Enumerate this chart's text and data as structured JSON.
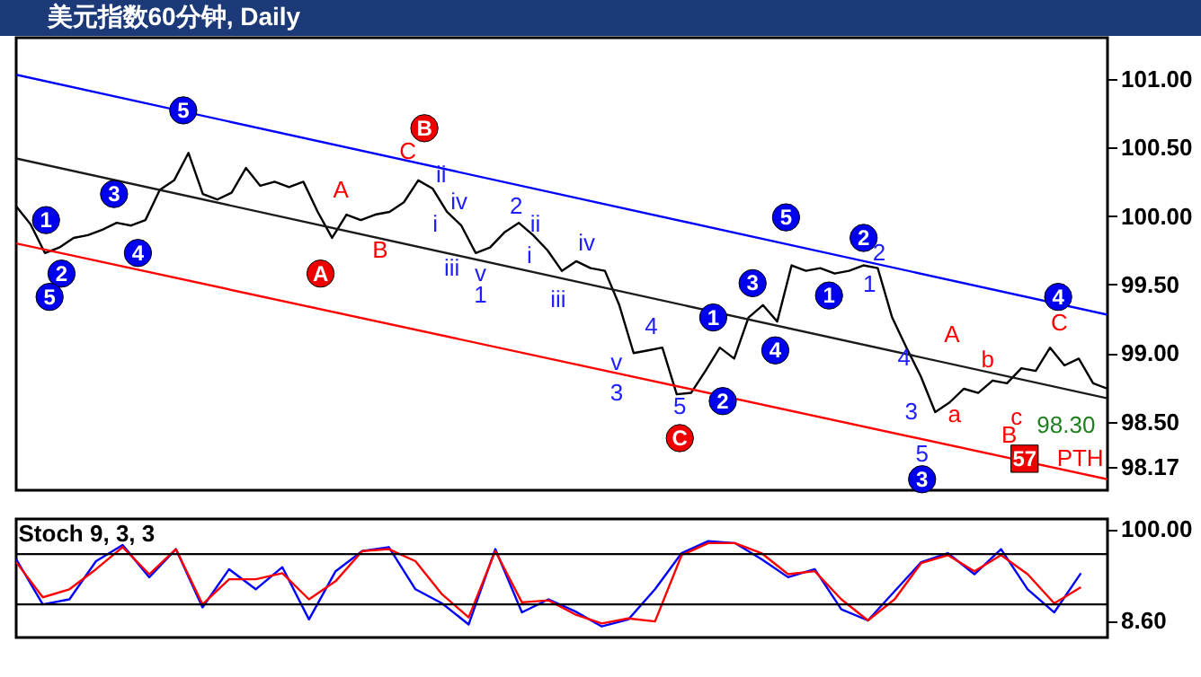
{
  "chart_data": [
    {
      "type": "line",
      "title": "美元指数60分钟, Daily",
      "ylim": [
        98.0,
        101.3
      ],
      "tick_labels": "y",
      "categories": [
        null,
        null,
        null,
        null,
        null,
        null,
        null,
        null,
        null,
        null,
        null,
        null,
        null,
        null,
        null,
        null,
        null,
        null,
        null,
        null,
        null,
        null,
        null,
        null,
        null,
        null,
        null,
        null,
        null,
        null,
        null,
        null,
        null,
        null,
        null,
        null,
        null,
        null,
        null,
        null,
        null,
        null,
        null,
        null,
        null,
        null,
        null,
        null,
        null,
        null,
        null,
        null,
        null,
        null,
        null,
        null,
        null,
        null,
        null,
        null,
        null,
        null,
        null,
        null,
        null,
        null,
        null,
        null,
        null,
        null,
        null,
        null,
        null,
        null,
        null,
        null,
        null
      ],
      "yticks": [
        {
          "value": 98.17,
          "label": "98.17"
        },
        {
          "value": 98.5,
          "label": "98.50"
        },
        {
          "value": 99,
          "label": "99.00"
        },
        {
          "value": 99.5,
          "label": "99.50"
        },
        {
          "value": 100,
          "label": "100.00"
        },
        {
          "value": 100.5,
          "label": "100.50"
        },
        {
          "value": 101,
          "label": "101.00"
        }
      ],
      "annotations": [
        "5",
        "1",
        "3",
        "4",
        "2",
        "5",
        "1",
        "2",
        "3",
        "4",
        "5",
        "2",
        "1",
        "3",
        "4",
        "B",
        "A",
        "C",
        "C",
        "A",
        "B",
        "A",
        "b",
        "a",
        "c",
        "B",
        "C",
        "PTH",
        "ii",
        "iv",
        "i",
        "iii",
        "v",
        "1",
        "2",
        "ii",
        "i",
        "iv",
        "iii",
        "4",
        "v",
        "3",
        "5",
        "2",
        "1",
        "4",
        "3",
        "5",
        "57",
        "98.30"
      ],
      "series": [
        {
          "color": "#000000",
          "values": [
            100.07,
            99.94,
            99.73,
            99.77,
            99.84,
            99.86,
            99.9,
            99.95,
            99.93,
            99.97,
            100.19,
            100.26,
            100.46,
            100.16,
            100.12,
            100.17,
            100.35,
            100.22,
            100.25,
            100.21,
            100.25,
            100.03,
            99.84,
            100.01,
            99.97,
            100.01,
            100.03,
            100.1,
            100.26,
            100.2,
            100.03,
            99.93,
            99.73,
            99.77,
            99.88,
            99.95,
            99.86,
            99.75,
            99.6,
            99.67,
            99.62,
            99.6,
            99.35,
            99.0,
            99.02,
            99.04,
            98.7,
            98.71,
            98.87,
            99.04,
            98.96,
            99.26,
            99.35,
            99.23,
            99.64,
            99.6,
            99.62,
            99.58,
            99.6,
            99.64,
            99.62,
            99.26,
            99.04,
            98.83,
            98.57,
            98.64,
            98.74,
            98.71,
            98.8,
            98.78,
            98.89,
            98.87,
            99.04,
            98.91,
            98.96,
            98.78,
            98.74
          ]
        },
        {
          "color": "#0000ff",
          "values": [
            101.03,
            null,
            null,
            null,
            null,
            null,
            null,
            null,
            null,
            null,
            null,
            null,
            null,
            null,
            null,
            null,
            null,
            null,
            null,
            null,
            null,
            null,
            null,
            null,
            null,
            null,
            null,
            null,
            null,
            null,
            null,
            null,
            null,
            null,
            null,
            null,
            null,
            null,
            null,
            null,
            null,
            null,
            null,
            null,
            null,
            null,
            null,
            null,
            null,
            null,
            null,
            null,
            null,
            null,
            null,
            null,
            null,
            null,
            null,
            null,
            null,
            null,
            null,
            null,
            null,
            null,
            null,
            null,
            null,
            null,
            null,
            null,
            null,
            null,
            null,
            null,
            99.28
          ]
        },
        {
          "color": "#1a1a1a",
          "values": [
            100.42,
            null,
            null,
            null,
            null,
            null,
            null,
            null,
            null,
            null,
            null,
            null,
            null,
            null,
            null,
            null,
            null,
            null,
            null,
            null,
            null,
            null,
            null,
            null,
            null,
            null,
            null,
            null,
            null,
            null,
            null,
            null,
            null,
            null,
            null,
            null,
            null,
            null,
            null,
            null,
            null,
            null,
            null,
            null,
            null,
            null,
            null,
            null,
            null,
            null,
            null,
            null,
            null,
            null,
            null,
            null,
            null,
            null,
            null,
            null,
            null,
            null,
            null,
            null,
            null,
            null,
            null,
            null,
            null,
            null,
            null,
            null,
            null,
            null,
            null,
            null,
            98.67
          ]
        },
        {
          "color": "#ff0000",
          "values": [
            99.8,
            null,
            null,
            null,
            null,
            null,
            null,
            null,
            null,
            null,
            null,
            null,
            null,
            null,
            null,
            null,
            null,
            null,
            null,
            null,
            null,
            null,
            null,
            null,
            null,
            null,
            null,
            null,
            null,
            null,
            null,
            null,
            null,
            null,
            null,
            null,
            null,
            null,
            null,
            null,
            null,
            null,
            null,
            null,
            null,
            null,
            null,
            null,
            null,
            null,
            null,
            null,
            null,
            null,
            null,
            null,
            null,
            null,
            null,
            null,
            null,
            null,
            null,
            null,
            null,
            null,
            null,
            null,
            null,
            null,
            null,
            null,
            null,
            null,
            null,
            null,
            98.08
          ]
        }
      ]
    },
    {
      "type": "line",
      "title": "Stoch 9, 3, 3",
      "ylim": [
        -8,
        110
      ],
      "tick_labels": "y",
      "categories": [
        null,
        null,
        null,
        null,
        null,
        null,
        null,
        null,
        null,
        null,
        null,
        null,
        null,
        null,
        null,
        null,
        null,
        null,
        null,
        null,
        null,
        null,
        null,
        null,
        null,
        null,
        null,
        null,
        null,
        null,
        null,
        null,
        null,
        null,
        null,
        null,
        null,
        null,
        null,
        null,
        null,
        null
      ],
      "yticks": [
        {
          "value": 8.6,
          "label": "8.60"
        },
        {
          "value": 100,
          "label": "100.00"
        }
      ],
      "ref_lines": [
        {
          "axis": "y",
          "value": 75,
          "color": "#000000"
        },
        {
          "axis": "y",
          "value": 25,
          "color": "#000000"
        }
      ],
      "series": [
        {
          "color": "#0000ff",
          "values": [
            70,
            25,
            30,
            68,
            84,
            52,
            80,
            22,
            60,
            40,
            62,
            10,
            58,
            78,
            82,
            40,
            26,
            5,
            80,
            17,
            30,
            18,
            3,
            10,
            40,
            76,
            88,
            86,
            70,
            52,
            60,
            20,
            9,
            38,
            67,
            76,
            55,
            80,
            40,
            17,
            56,
            null
          ]
        },
        {
          "color": "#ff0000",
          "values": [
            67,
            32,
            40,
            60,
            82,
            55,
            80,
            25,
            50,
            50,
            56,
            30,
            48,
            78,
            80,
            68,
            35,
            12,
            78,
            27,
            29,
            15,
            6,
            11,
            8,
            74,
            86,
            86,
            76,
            55,
            58,
            30,
            9,
            30,
            66,
            74,
            58,
            74,
            55,
            26,
            42,
            null
          ]
        }
      ]
    }
  ]
}
